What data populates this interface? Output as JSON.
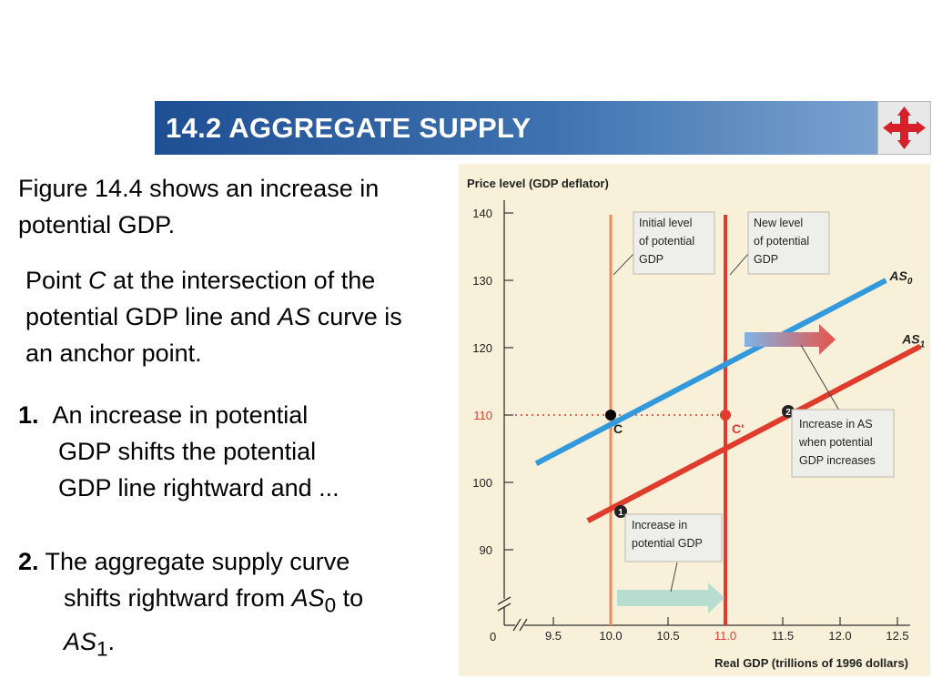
{
  "header": {
    "title": "14.2 AGGREGATE SUPPLY",
    "nav_icon": "four-way-arrows-icon"
  },
  "text": {
    "intro": "Figure 14.4 shows an increase in potential GDP.",
    "anchor": {
      "p1": "Point ",
      "c": "C",
      "p2": " at the intersection of the potential GDP line and ",
      "as": "AS",
      "p3": " curve is an anchor point."
    },
    "item1": {
      "num": "1.",
      "line1": "An increase in potential",
      "line2": "GDP shifts the potential",
      "line3": "GDP line rightward and ..."
    },
    "item2": {
      "num": "2.",
      "line1": " The aggregate supply curve",
      "line2a": "shifts rightward  from ",
      "as": "AS",
      "sub0": "0",
      "to": " to",
      "as1": "AS",
      "sub1": "1",
      "end": "."
    }
  },
  "chart_data": {
    "type": "line",
    "ylabel": "Price level (GDP deflator)",
    "xlabel": "Real GDP (trillions of 1996 dollars)",
    "origin_label": "0",
    "x_ticks": [
      "9.5",
      "10.0",
      "10.5",
      "11.0",
      "11.5",
      "12.0",
      "12.5"
    ],
    "y_ticks": [
      "90",
      "100",
      "110",
      "120",
      "130",
      "140"
    ],
    "xlim": [
      9.5,
      12.5
    ],
    "ylim": [
      90,
      140
    ],
    "highlight": {
      "x": "11.0",
      "y": "110"
    },
    "series": [
      {
        "name": "AS",
        "sub": "0",
        "x": [
          9.35,
          12.4
        ],
        "y": [
          102.8,
          130.0
        ],
        "color": "#3399dd"
      },
      {
        "name": "AS",
        "sub": "1",
        "x": [
          9.8,
          12.7
        ],
        "y": [
          94.3,
          120.2
        ],
        "color": "#e03c2e"
      }
    ],
    "vlines": [
      {
        "x": 10.0,
        "color": "#f08a5d",
        "label": "Initial level of potential GDP"
      },
      {
        "x": 11.0,
        "color": "#e03c2e",
        "label": "New level of potential GDP"
      }
    ],
    "points": [
      {
        "label": "C",
        "x": 10.0,
        "y": 110,
        "color": "#000000"
      },
      {
        "label": "C'",
        "x": 11.0,
        "y": 110,
        "color": "#e03c2e"
      }
    ],
    "annotations": [
      {
        "marker": "1",
        "text": "Increase in potential GDP"
      },
      {
        "marker": "2",
        "text": "Increase in AS when potential GDP increases"
      }
    ],
    "colors": {
      "as0": "#3399dd",
      "as1": "#e03c2e",
      "potential_initial": "#f08a5d",
      "shift_arrow": "#b7ddd0",
      "background": "#f8f0d9"
    }
  }
}
